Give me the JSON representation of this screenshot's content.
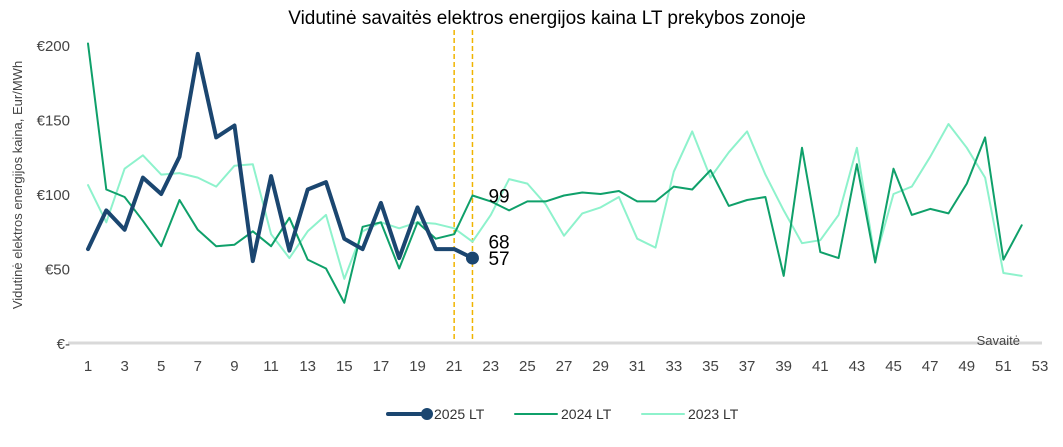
{
  "chart_data": {
    "type": "line",
    "title": "Vidutinė savaitės elektros energijos kaina LT prekybos zonoje",
    "xlabel": "Savaitė",
    "ylabel": "Vidutinė elektros energijos kaina, Eur/MWh",
    "xlim": [
      1,
      53
    ],
    "ylim": [
      0,
      200
    ],
    "x_ticks": [
      1,
      3,
      5,
      7,
      9,
      11,
      13,
      15,
      17,
      19,
      21,
      23,
      25,
      27,
      29,
      31,
      33,
      35,
      37,
      39,
      41,
      43,
      45,
      47,
      49,
      51,
      53
    ],
    "y_ticks": [
      {
        "value": 0,
        "label": "€-"
      },
      {
        "value": 50,
        "label": "€50"
      },
      {
        "value": 100,
        "label": "€100"
      },
      {
        "value": 150,
        "label": "€150"
      },
      {
        "value": 200,
        "label": "€200"
      }
    ],
    "vlines": [
      21,
      22
    ],
    "vline_color": "#f0b400",
    "grid": false,
    "legend_position": "bottom",
    "series": [
      {
        "name": "2025 LT",
        "color": "#1b4670",
        "width": 4,
        "marker_last": true,
        "x": [
          1,
          2,
          3,
          4,
          5,
          6,
          7,
          8,
          9,
          10,
          11,
          12,
          13,
          14,
          15,
          16,
          17,
          18,
          19,
          20,
          21,
          22
        ],
        "values": [
          63,
          89,
          76,
          111,
          100,
          125,
          194,
          138,
          146,
          55,
          112,
          62,
          103,
          108,
          70,
          63,
          94,
          57,
          91,
          63,
          63,
          57
        ]
      },
      {
        "name": "2024 LT",
        "color": "#0fa06a",
        "width": 2,
        "x": [
          1,
          2,
          3,
          4,
          5,
          6,
          7,
          8,
          9,
          10,
          11,
          12,
          13,
          14,
          15,
          16,
          17,
          18,
          19,
          20,
          21,
          22,
          23,
          24,
          25,
          26,
          27,
          28,
          29,
          30,
          31,
          32,
          33,
          34,
          35,
          36,
          37,
          38,
          39,
          40,
          41,
          42,
          43,
          44,
          45,
          46,
          47,
          48,
          49,
          50,
          51,
          52
        ],
        "values": [
          201,
          103,
          98,
          82,
          65,
          96,
          76,
          65,
          66,
          75,
          65,
          84,
          56,
          50,
          27,
          78,
          81,
          50,
          81,
          70,
          73,
          99,
          95,
          89,
          95,
          95,
          99,
          101,
          100,
          102,
          95,
          95,
          105,
          103,
          116,
          92,
          96,
          98,
          45,
          131,
          61,
          57,
          120,
          54,
          117,
          86,
          90,
          87,
          107,
          138,
          56,
          79
        ]
      },
      {
        "name": "2023 LT",
        "color": "#8ef2cc",
        "width": 2,
        "x": [
          1,
          2,
          3,
          4,
          5,
          6,
          7,
          8,
          9,
          10,
          11,
          12,
          13,
          14,
          15,
          16,
          17,
          18,
          19,
          20,
          21,
          22,
          23,
          24,
          25,
          26,
          27,
          28,
          29,
          30,
          31,
          32,
          33,
          34,
          35,
          36,
          37,
          38,
          39,
          40,
          41,
          42,
          43,
          44,
          45,
          46,
          47,
          48,
          49,
          50,
          51,
          52
        ],
        "values": [
          106,
          81,
          117,
          126,
          113,
          114,
          111,
          105,
          119,
          120,
          73,
          57,
          75,
          86,
          43,
          75,
          81,
          77,
          81,
          80,
          77,
          68,
          86,
          110,
          107,
          93,
          72,
          87,
          91,
          98,
          70,
          64,
          115,
          142,
          111,
          128,
          142,
          113,
          89,
          67,
          69,
          86,
          131,
          56,
          100,
          105,
          125,
          147,
          131,
          111,
          47,
          45
        ]
      }
    ],
    "annotations": [
      {
        "text": "99",
        "x": 22,
        "y": 99,
        "color": "#000000"
      },
      {
        "text": "68",
        "x": 22,
        "y": 68,
        "color": "#000000"
      },
      {
        "text": "57",
        "x": 22,
        "y": 57,
        "color": "#000000"
      }
    ]
  }
}
